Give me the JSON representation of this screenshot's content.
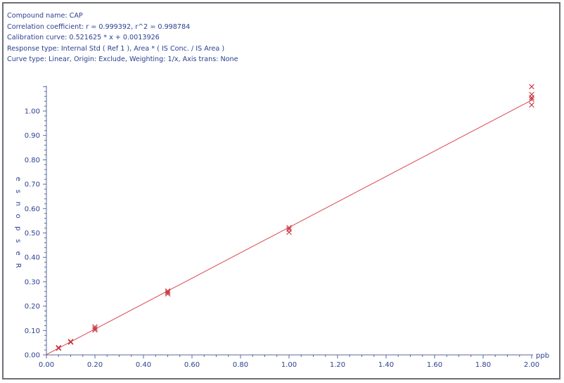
{
  "header": {
    "compound": "Compound name: CAP",
    "correlation": "Correlation coefficient: r = 0.999392, r^2 = 0.998784",
    "calibration": "Calibration curve: 0.521625 * x + 0.0013926",
    "response": "Response type: Internal Std ( Ref 1 ), Area * ( IS Conc. / IS Area )",
    "curve_type": "Curve type: Linear, Origin: Exclude, Weighting: 1/x, Axis trans: None"
  },
  "colors": {
    "text": "#2b3f8f",
    "axis": "#5a6a9a",
    "fit_line": "#d9474f",
    "points": "#c8343c",
    "border": "#6c6f74"
  },
  "chart_data": {
    "type": "scatter",
    "title": "",
    "xlabel": "ppb",
    "ylabel": "Response",
    "xlim": [
      0,
      2.0
    ],
    "ylim": [
      0,
      1.07
    ],
    "x_ticks": [
      "0.00",
      "0.20",
      "0.40",
      "0.60",
      "0.80",
      "1.00",
      "1.20",
      "1.40",
      "1.60",
      "1.80",
      "2.00"
    ],
    "y_ticks": [
      "0.00",
      "0.10",
      "0.20",
      "0.30",
      "0.40",
      "0.50",
      "0.60",
      "0.70",
      "0.80",
      "0.90",
      "1.00"
    ],
    "fit": {
      "slope": 0.521625,
      "intercept": 0.0013926,
      "x_range": [
        0,
        2.0
      ]
    },
    "series": [
      {
        "points": [
          {
            "x": 0.05,
            "y": 0.027
          },
          {
            "x": 0.05,
            "y": 0.03
          },
          {
            "x": 0.1,
            "y": 0.052
          },
          {
            "x": 0.1,
            "y": 0.055
          },
          {
            "x": 0.2,
            "y": 0.102
          },
          {
            "x": 0.2,
            "y": 0.108
          },
          {
            "x": 0.2,
            "y": 0.115
          },
          {
            "x": 0.5,
            "y": 0.25
          },
          {
            "x": 0.5,
            "y": 0.256
          },
          {
            "x": 0.5,
            "y": 0.262
          },
          {
            "x": 1.0,
            "y": 0.503
          },
          {
            "x": 1.0,
            "y": 0.515
          },
          {
            "x": 1.0,
            "y": 0.522
          },
          {
            "x": 2.0,
            "y": 1.025
          },
          {
            "x": 2.0,
            "y": 1.048
          },
          {
            "x": 2.0,
            "y": 1.055
          },
          {
            "x": 2.0,
            "y": 1.068
          },
          {
            "x": 2.0,
            "y": 1.1
          }
        ]
      }
    ],
    "grid": false,
    "legend": "none"
  }
}
